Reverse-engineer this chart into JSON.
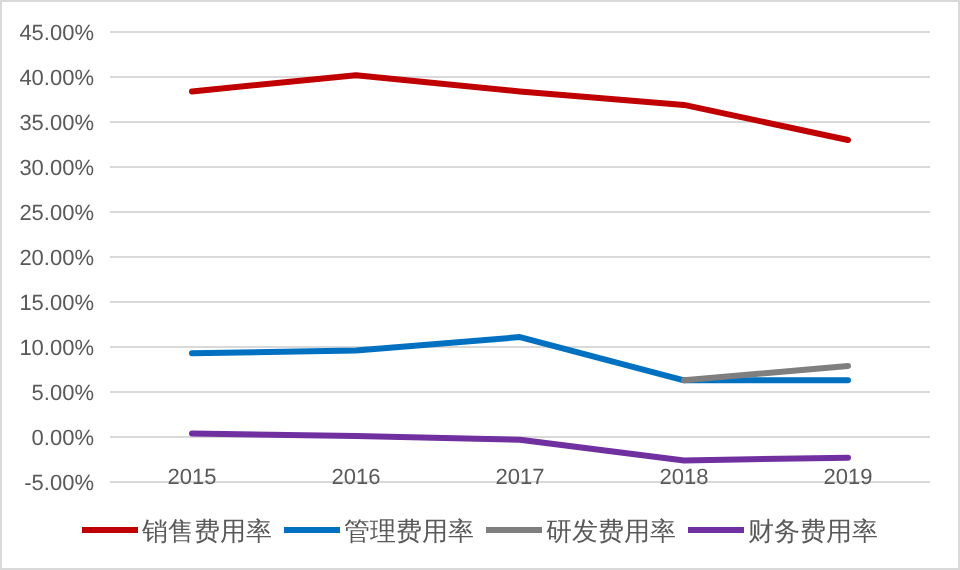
{
  "chart_data": {
    "type": "line",
    "categories": [
      "2015",
      "2016",
      "2017",
      "2018",
      "2019"
    ],
    "series": [
      {
        "name": "销售费用率",
        "color": "#c00000",
        "values": [
          38.4,
          40.2,
          38.4,
          36.9,
          33.0
        ]
      },
      {
        "name": "管理费用率",
        "color": "#0070c0",
        "values": [
          9.3,
          9.6,
          11.1,
          6.3,
          6.3
        ]
      },
      {
        "name": "研发费用率",
        "color": "#7f7f7f",
        "values": [
          null,
          null,
          null,
          6.3,
          7.9
        ]
      },
      {
        "name": "财务费用率",
        "color": "#7030a0",
        "values": [
          0.4,
          0.1,
          -0.3,
          -2.6,
          -2.3
        ]
      }
    ],
    "ylim": [
      -5,
      45
    ],
    "yticks": [
      {
        "value": -5,
        "label": "-5.00%"
      },
      {
        "value": 0,
        "label": "0.00%"
      },
      {
        "value": 5,
        "label": "5.00%"
      },
      {
        "value": 10,
        "label": "10.00%"
      },
      {
        "value": 15,
        "label": "15.00%"
      },
      {
        "value": 20,
        "label": "20.00%"
      },
      {
        "value": 25,
        "label": "25.00%"
      },
      {
        "value": 30,
        "label": "30.00%"
      },
      {
        "value": 35,
        "label": "35.00%"
      },
      {
        "value": 40,
        "label": "40.00%"
      },
      {
        "value": 45,
        "label": "45.00%"
      }
    ],
    "grid": "y",
    "legend": "bottom",
    "marker": "none",
    "line_style": "solid"
  }
}
